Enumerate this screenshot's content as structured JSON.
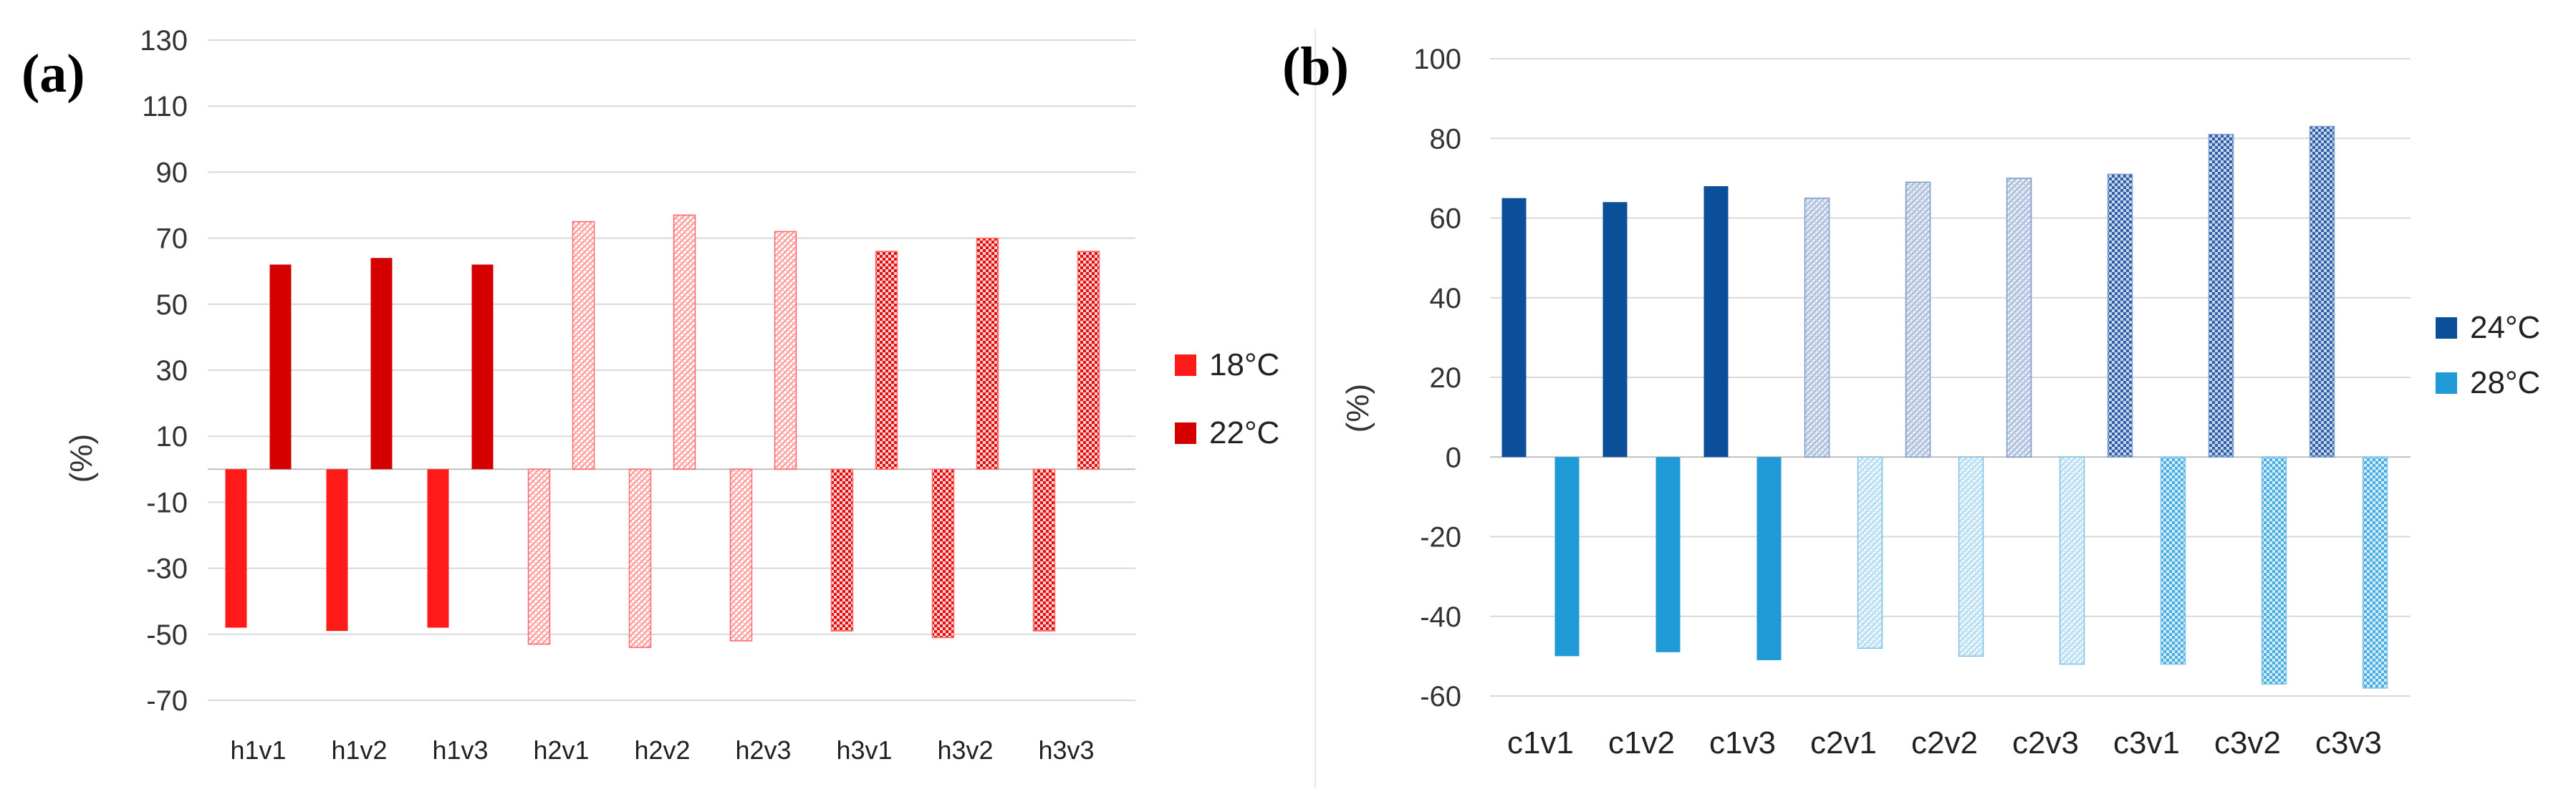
{
  "chart_data": [
    {
      "panel_label": "(a)",
      "type": "bar",
      "ylabel": "(%)",
      "ylim": [
        -70,
        130
      ],
      "yticks": [
        130,
        110,
        90,
        70,
        50,
        30,
        10,
        -10,
        -30,
        -50,
        -70
      ],
      "grid": true,
      "legend_position": "right",
      "categories": [
        "h1v1",
        "h1v2",
        "h1v3",
        "h2v1",
        "h2v2",
        "h2v3",
        "h3v1",
        "h3v2",
        "h3v3"
      ],
      "series": [
        {
          "name": "18°C",
          "color": "#ff1a1a",
          "values": [
            -48,
            -49,
            -48,
            -53,
            -54,
            -52,
            -49,
            -51,
            -49
          ]
        },
        {
          "name": "22°C",
          "color": "#d40000",
          "values": [
            62,
            64,
            62,
            75,
            77,
            72,
            66,
            70,
            66
          ]
        }
      ],
      "styles": [
        "solid",
        "solid",
        "solid",
        "hatch",
        "hatch",
        "hatch",
        "dots",
        "dots",
        "dots"
      ]
    },
    {
      "panel_label": "(b)",
      "type": "bar",
      "ylabel": "(%)",
      "ylim": [
        -60,
        100
      ],
      "yticks": [
        100,
        80,
        60,
        40,
        20,
        0,
        -20,
        -40,
        -60
      ],
      "grid": true,
      "legend_position": "right",
      "categories": [
        "c1v1",
        "c1v2",
        "c1v3",
        "c2v1",
        "c2v2",
        "c2v3",
        "c3v1",
        "c3v2",
        "c3v3"
      ],
      "series": [
        {
          "name": "24°C",
          "color": "#0b4f9a",
          "values": [
            65,
            64,
            68,
            65,
            69,
            70,
            71,
            81,
            83
          ]
        },
        {
          "name": "28°C",
          "color": "#1f9ad6",
          "values": [
            -50,
            -49,
            -51,
            -48,
            -50,
            -52,
            -52,
            -57,
            -58
          ]
        }
      ],
      "styles": [
        "solid",
        "solid",
        "solid",
        "hatch",
        "hatch",
        "hatch",
        "dots",
        "dots",
        "dots"
      ]
    }
  ]
}
